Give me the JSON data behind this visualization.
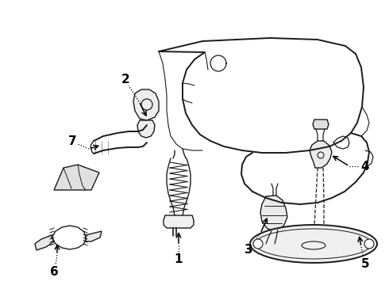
{
  "title": "",
  "background_color": "#ffffff",
  "line_color": "#1a1a1a",
  "label_color": "#000000",
  "fig_width": 4.9,
  "fig_height": 3.6,
  "dpi": 100
}
